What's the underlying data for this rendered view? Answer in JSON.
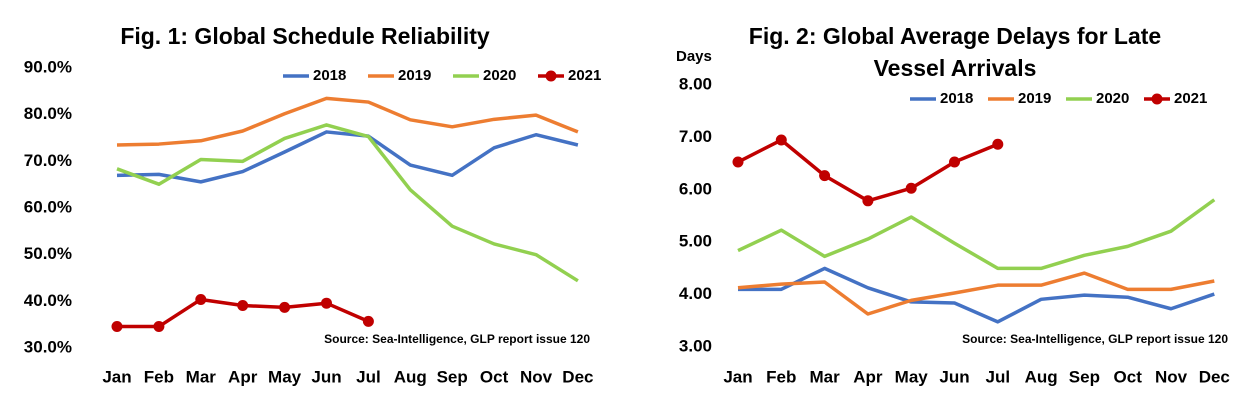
{
  "chart_data": [
    {
      "type": "line",
      "title": "Fig. 1: Global Schedule Reliability",
      "categories": [
        "Jan",
        "Feb",
        "Mar",
        "Apr",
        "May",
        "Jun",
        "Jul",
        "Aug",
        "Sep",
        "Oct",
        "Nov",
        "Dec"
      ],
      "series": [
        {
          "name": "2018",
          "color": "#4472c4",
          "values": [
            67.0,
            67.2,
            65.6,
            67.8,
            72.0,
            76.3,
            75.4,
            69.2,
            67.0,
            72.9,
            75.7,
            73.5
          ]
        },
        {
          "name": "2019",
          "color": "#ed7d31",
          "values": [
            73.5,
            73.7,
            74.4,
            76.5,
            80.2,
            83.5,
            82.7,
            78.9,
            77.4,
            79.0,
            79.9,
            76.3
          ]
        },
        {
          "name": "2020",
          "color": "#92d050",
          "values": [
            68.4,
            65.1,
            70.4,
            70.0,
            74.9,
            77.8,
            75.3,
            63.9,
            56.1,
            52.3,
            50.0,
            44.4
          ]
        },
        {
          "name": "2021",
          "color": "#c00000",
          "markers": true,
          "values": [
            34.6,
            34.6,
            40.4,
            39.1,
            38.7,
            39.6,
            35.7,
            null,
            null,
            null,
            null,
            null
          ]
        }
      ],
      "ylim": [
        30,
        90
      ],
      "yticks": [
        {
          "value": 30,
          "label": "30.0%"
        },
        {
          "value": 40,
          "label": "40.0%"
        },
        {
          "value": 50,
          "label": "50.0%"
        },
        {
          "value": 60,
          "label": "60.0%"
        },
        {
          "value": 70,
          "label": "70.0%"
        },
        {
          "value": 80,
          "label": "80.0%"
        },
        {
          "value": 90,
          "label": "90.0%"
        }
      ],
      "grid": false,
      "annotation": "Source: Sea-Intelligence, GLP report issue 120"
    },
    {
      "type": "line",
      "title": "Fig. 2: Global Average Delays for Late Vessel Arrivals",
      "y_label": "Days",
      "categories": [
        "Jan",
        "Feb",
        "Mar",
        "Apr",
        "May",
        "Jun",
        "Jul",
        "Aug",
        "Sep",
        "Oct",
        "Nov",
        "Dec"
      ],
      "series": [
        {
          "name": "2018",
          "color": "#4472c4",
          "values": [
            4.1,
            4.1,
            4.5,
            4.13,
            3.86,
            3.84,
            3.48,
            3.91,
            3.99,
            3.95,
            3.73,
            4.01
          ]
        },
        {
          "name": "2019",
          "color": "#ed7d31",
          "values": [
            4.13,
            4.2,
            4.24,
            3.63,
            3.89,
            4.03,
            4.18,
            4.18,
            4.41,
            4.1,
            4.1,
            4.26
          ]
        },
        {
          "name": "2020",
          "color": "#92d050",
          "values": [
            4.84,
            5.23,
            4.73,
            5.06,
            5.48,
            4.98,
            4.5,
            4.5,
            4.75,
            4.92,
            5.21,
            5.81
          ]
        },
        {
          "name": "2021",
          "color": "#c00000",
          "markers": true,
          "values": [
            6.53,
            6.95,
            6.27,
            5.79,
            6.03,
            6.53,
            6.87,
            null,
            null,
            null,
            null,
            null
          ]
        }
      ],
      "ylim": [
        3,
        8
      ],
      "yticks": [
        {
          "value": 3,
          "label": "3.00"
        },
        {
          "value": 4,
          "label": "4.00"
        },
        {
          "value": 5,
          "label": "5.00"
        },
        {
          "value": 6,
          "label": "6.00"
        },
        {
          "value": 7,
          "label": "7.00"
        },
        {
          "value": 8,
          "label": "8.00"
        }
      ],
      "grid": false,
      "annotation": "Source: Sea-Intelligence, GLP report issue 120"
    }
  ]
}
